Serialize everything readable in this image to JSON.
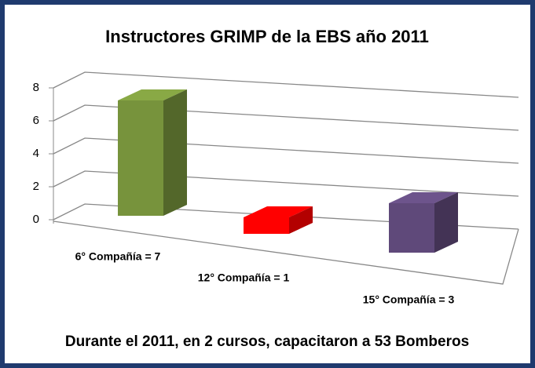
{
  "chart_data": {
    "type": "bar3d",
    "title": "Instructores GRIMP de la EBS año 2011",
    "categories": [
      "6° Compañía = 7",
      "12° Compañía = 1",
      "15° Compañía = 3"
    ],
    "values": [
      7,
      1,
      3
    ],
    "colors": [
      "#77933c",
      "#ff0000",
      "#5f497a"
    ],
    "ylim": [
      0,
      8
    ],
    "yticks": [
      0,
      2,
      4,
      6,
      8
    ],
    "grid": true,
    "footer": "Durante el 2011, en 2 cursos, capacitaron a 53 Bomberos"
  }
}
